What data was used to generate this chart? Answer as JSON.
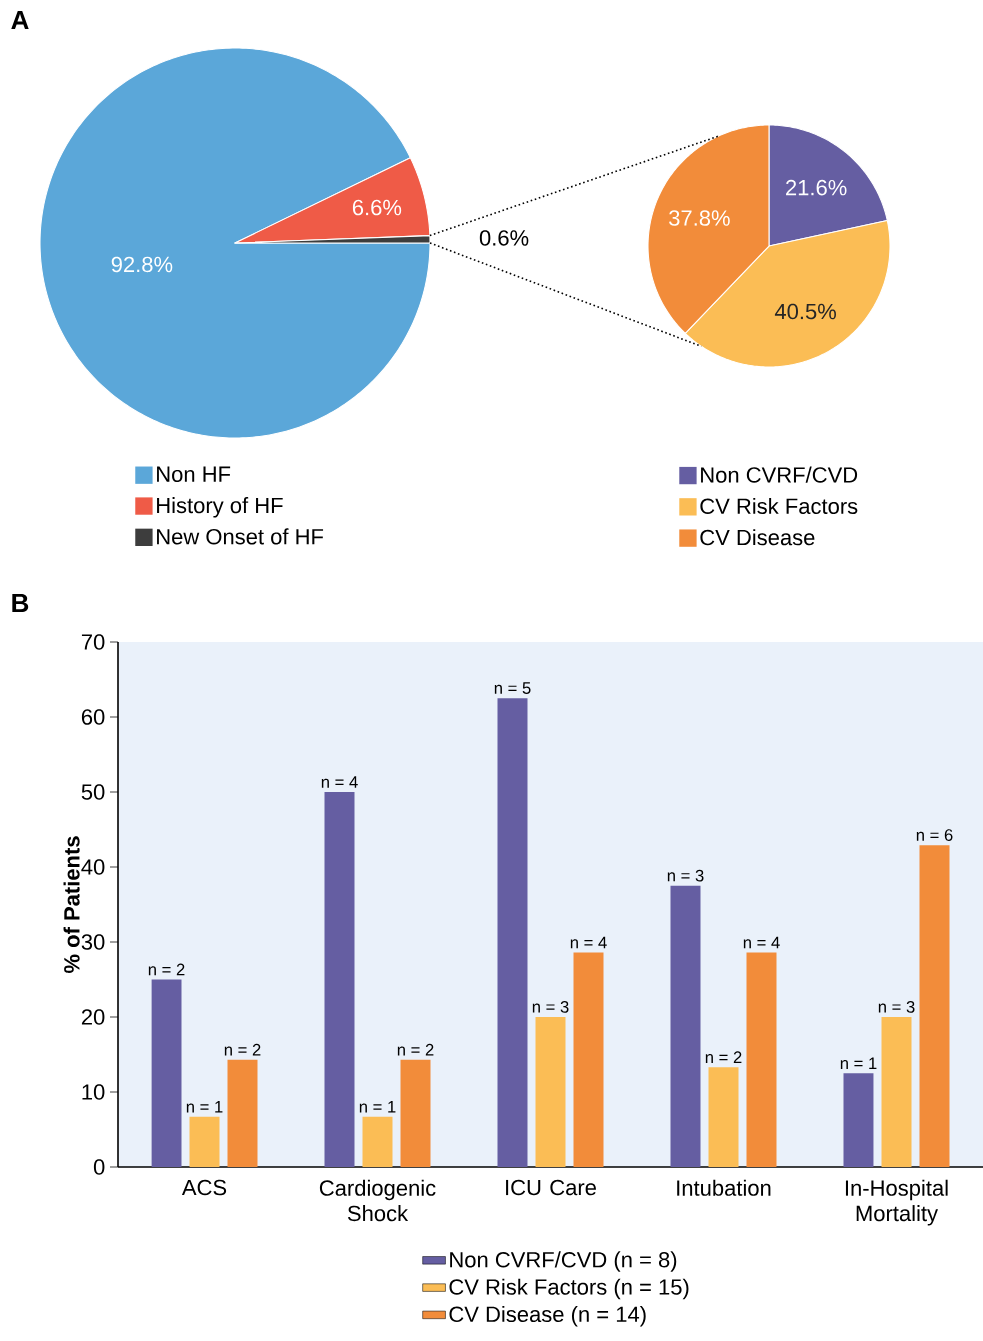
{
  "chart_data": [
    {
      "type": "pie",
      "title": "A",
      "categories": [
        "Non HF",
        "History of HF",
        "New Onset of HF"
      ],
      "values": [
        92.8,
        6.6,
        0.6
      ],
      "colors": [
        "#5ba7d9",
        "#ef5b47",
        "#3d3d3d"
      ],
      "value_labels": [
        "92.8%",
        "6.6%",
        "0.6%"
      ],
      "legend": "bottom"
    },
    {
      "type": "pie",
      "categories": [
        "Non CVRF/CVD",
        "CV Risk Factors",
        "CV Disease"
      ],
      "values": [
        21.6,
        40.5,
        37.8
      ],
      "colors": [
        "#655ea2",
        "#fbbd55",
        "#f28c3a"
      ],
      "value_labels": [
        "21.6%",
        "40.5%",
        "37.8%"
      ],
      "legend": "bottom"
    },
    {
      "type": "bar",
      "title": "B",
      "ylabel": "% of Patients",
      "categories": [
        "ACS",
        "Cardiogenic Shock",
        "ICU Care",
        "Intubation",
        "In-Hospital Mortality"
      ],
      "ylim": [
        0,
        70
      ],
      "yticks": [
        0,
        10,
        20,
        30,
        40,
        50,
        60,
        70
      ],
      "legend": "bottom",
      "series": [
        {
          "name": "Non CVRF/CVD (n = 8)",
          "color": "#655ea2",
          "values": [
            25,
            50,
            62.5,
            37.5,
            12.5
          ]
        },
        {
          "name": "CV Risk Factors (n = 15)",
          "color": "#fbbd55",
          "values": [
            6.7,
            6.7,
            20,
            13.3,
            20
          ]
        },
        {
          "name": "CV Disease (n = 14)",
          "color": "#f28c3a",
          "values": [
            14.3,
            14.3,
            28.6,
            28.6,
            42.9
          ]
        }
      ],
      "annotations": [
        "n = 2",
        "n = 1",
        "n = 2",
        "n = 4",
        "n = 1",
        "n = 2",
        "n = 5",
        "n = 3",
        "n = 4",
        "n = 3",
        "n = 2",
        "n = 4",
        "n = 1",
        "n = 3",
        "n = 6"
      ]
    }
  ]
}
